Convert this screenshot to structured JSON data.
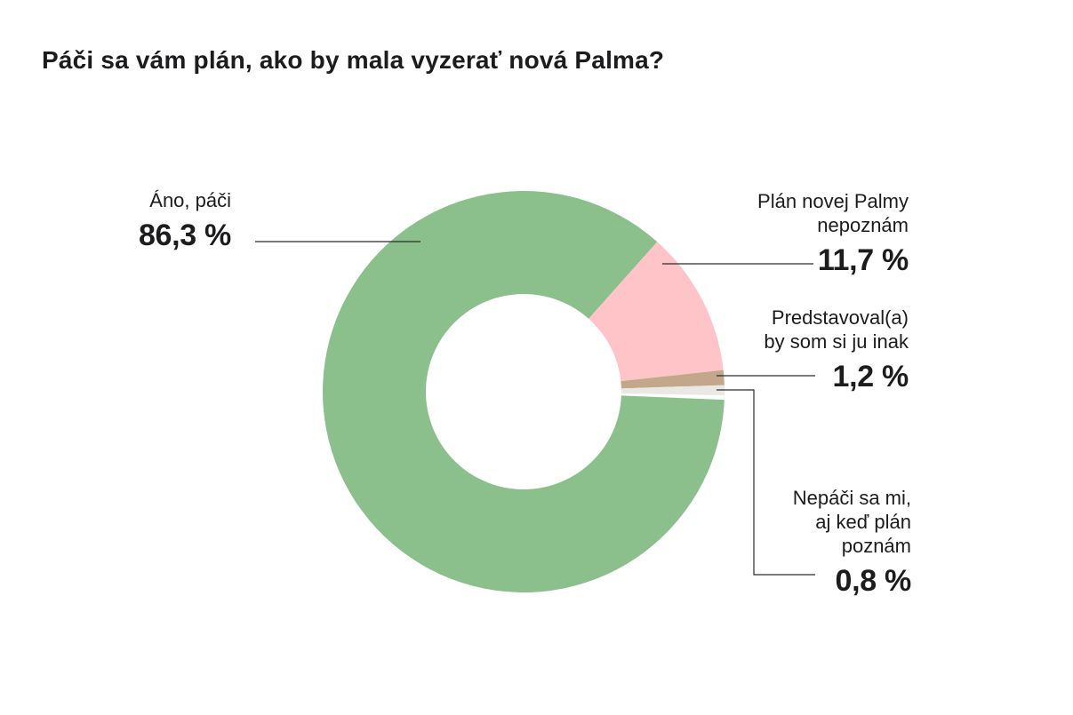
{
  "page": {
    "background": "#ffffff"
  },
  "chart_data": {
    "type": "donut",
    "title": "Páči sa vám plán, ako by mala vyzerať nová Palma?",
    "legend_position": "callouts-with-leader-lines",
    "grid": false,
    "direction": "clockwise",
    "start_angle_deg": 1.0,
    "inner_radius_ratio": 0.487,
    "separator_color": "#ffffff",
    "leader_line_color": "#2b2b2b",
    "text_color": "#1c1c1e",
    "slices": [
      {
        "label": "Áno, páči",
        "pct": 86.3,
        "pct_display": "86,3 %",
        "color": "#8bbf8c"
      },
      {
        "label": "Plán novej Palmy\nnepoznám",
        "pct": 11.7,
        "pct_display": "11,7 %",
        "color": "#fec4c7"
      },
      {
        "label": "Predstavoval(a)\nby som si ju inak",
        "pct": 1.2,
        "pct_display": "1,2 %",
        "color": "#c3a78a"
      },
      {
        "label": "Nepáči sa mi,\naj keď plán\npoznám",
        "pct": 0.8,
        "pct_display": "0,8 %",
        "color": "#e9e8e4"
      }
    ]
  }
}
